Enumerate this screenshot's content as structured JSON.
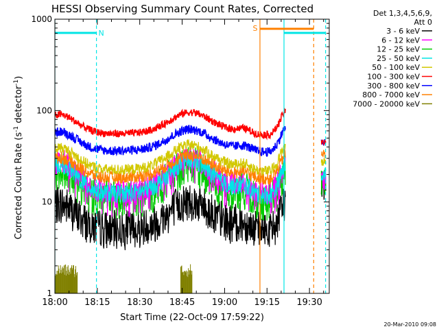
{
  "chart_data": {
    "type": "line",
    "title": "HESSI Observing Summary Count Rates, Corrected",
    "xlabel": "Start Time (22-Oct-09 17:59:22)",
    "ylabel_main": "Corrected Count Rate (s",
    "ylabel_sup1": "-1",
    "ylabel_mid": " detector",
    "ylabel_sup2": "-1",
    "ylabel_end": ")",
    "y_scale": "log",
    "ylim": [
      1,
      1000
    ],
    "xlim_minutes": [
      0,
      97
    ],
    "x_ticks": [
      {
        "min": 0,
        "label": "18:00"
      },
      {
        "min": 15,
        "label": "18:15"
      },
      {
        "min": 30,
        "label": "18:30"
      },
      {
        "min": 45,
        "label": "18:45"
      },
      {
        "min": 60,
        "label": "19:00"
      },
      {
        "min": 75,
        "label": "19:15"
      },
      {
        "min": 90,
        "label": "19:30"
      }
    ],
    "y_ticks": [
      {
        "value": 1,
        "label": "1"
      },
      {
        "value": 10,
        "label": "10"
      },
      {
        "value": 100,
        "label": "100"
      },
      {
        "value": 1000,
        "label": "1000"
      }
    ],
    "legend": {
      "header1": "Det 1,3,4,5,6,9,",
      "header2": "Att 0",
      "placement": "right"
    },
    "series": [
      {
        "name": "3 - 6 keV",
        "color": "#000000"
      },
      {
        "name": "6 - 12 keV",
        "color": "#ff00ff"
      },
      {
        "name": "12 - 25 keV",
        "color": "#00cc00"
      },
      {
        "name": "25 - 50 keV",
        "color": "#00e5e5"
      },
      {
        "name": "50 - 100 keV",
        "color": "#d2c800"
      },
      {
        "name": "100 - 300 keV",
        "color": "#ff0000"
      },
      {
        "name": "300 - 800 keV",
        "color": "#0000ff"
      },
      {
        "name": "800 - 7000 keV",
        "color": "#ff8000"
      },
      {
        "name": "7000 - 20000 keV",
        "color": "#808000"
      }
    ],
    "annotations": [
      {
        "label": "N",
        "color": "#00e5e5",
        "start_min": 0,
        "end_min": 14.7
      },
      {
        "label": "",
        "color": "#00e5e5",
        "start_min": 81,
        "end_min": 95.7
      },
      {
        "label": "S",
        "color": "#ff8000",
        "start_min": 72.5,
        "end_min": 91.5
      }
    ],
    "vertical_lines": [
      {
        "min": 0,
        "color": "#00e5e5",
        "style": "solid"
      },
      {
        "min": 14.7,
        "color": "#00e5e5",
        "style": "dashed"
      },
      {
        "min": 72.5,
        "color": "#ff8000",
        "style": "solid"
      },
      {
        "min": 81,
        "color": "#00e5e5",
        "style": "solid"
      },
      {
        "min": 91.5,
        "color": "#ff8000",
        "style": "dashed"
      },
      {
        "min": 95.7,
        "color": "#00e5e5",
        "style": "dashed"
      }
    ]
  },
  "footer": {
    "timestamp": "20-Mar-2010 09:08"
  }
}
